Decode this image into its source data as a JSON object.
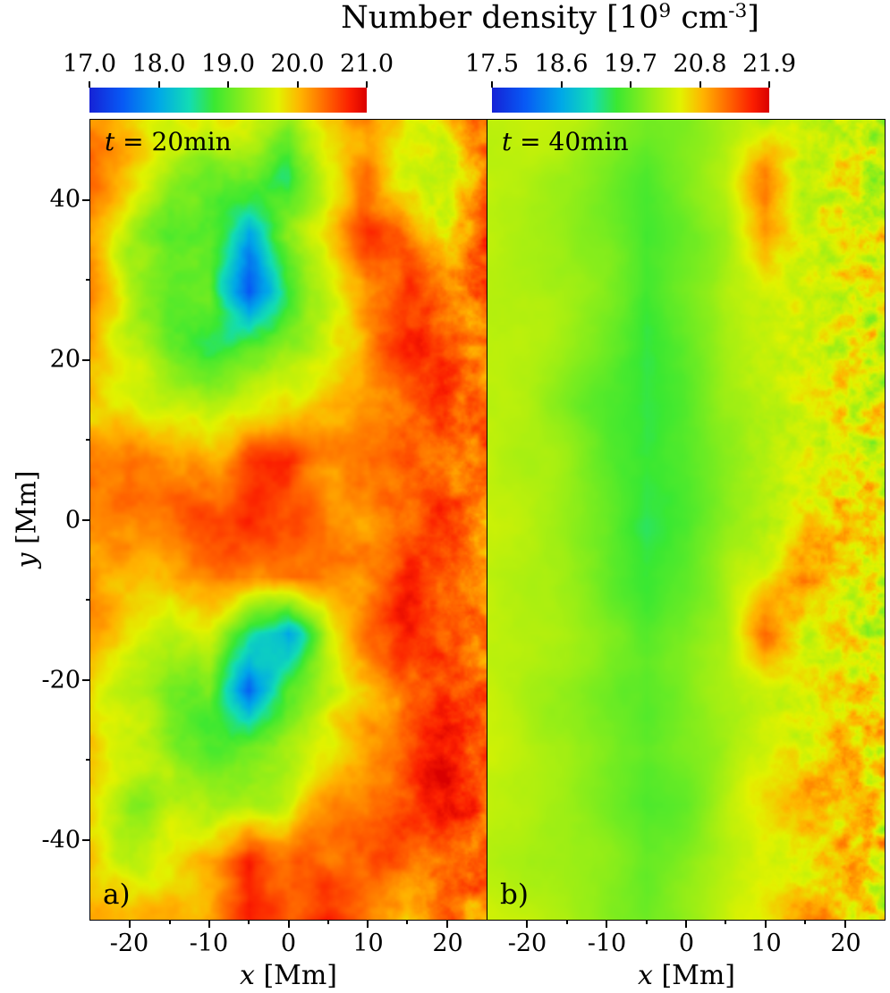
{
  "chart_data": {
    "type": "heatmap",
    "title": "Number density [10^9 cm^-3]",
    "title_parts": {
      "main": "Number density [10",
      "sup1": "9",
      "mid": " cm",
      "sup2": "-3",
      "end": "]"
    },
    "xlabel": {
      "var": "x",
      "unit": " [Mm]"
    },
    "ylabel": {
      "var": "y",
      "unit": " [Mm]"
    },
    "x_range": [
      -25,
      25
    ],
    "y_range": [
      -50,
      50
    ],
    "x_ticks": [
      "-20",
      "-10",
      "0",
      "10",
      "20"
    ],
    "y_ticks": [
      "40",
      "20",
      "0",
      "-20",
      "-40"
    ],
    "colormap": "rainbow-jet",
    "colormap_stops": [
      [
        0.0,
        "#1522d6"
      ],
      [
        0.12,
        "#075af5"
      ],
      [
        0.25,
        "#00a8e8"
      ],
      [
        0.36,
        "#12dcb4"
      ],
      [
        0.45,
        "#3ae832"
      ],
      [
        0.58,
        "#9cee15"
      ],
      [
        0.68,
        "#e2f200"
      ],
      [
        0.76,
        "#ffb400"
      ],
      [
        0.86,
        "#ff6000"
      ],
      [
        0.94,
        "#fb1e00"
      ],
      [
        1.0,
        "#d90000"
      ]
    ],
    "panels": [
      {
        "label": "a)",
        "annotation": {
          "var": "t",
          "rest": " = 20min"
        },
        "colorbar_ticks": [
          "17.0",
          "18.0",
          "19.0",
          "20.0",
          "21.0"
        ],
        "vmin": 17.0,
        "vmax": 21.0,
        "grid_x": [
          -25,
          -20,
          -15,
          -10,
          -5,
          0,
          5,
          10,
          15,
          20,
          25
        ],
        "grid_y": [
          50,
          42.9,
          35.7,
          28.6,
          21.4,
          14.3,
          7.1,
          0,
          -7.1,
          -14.3,
          -21.4,
          -28.6,
          -35.7,
          -42.9,
          -50
        ],
        "values": [
          [
            20.3,
            20.1,
            19.7,
            19.5,
            19.8,
            19.4,
            20.1,
            20.3,
            19.9,
            20.0,
            20.3
          ],
          [
            20.3,
            19.8,
            19.3,
            19.1,
            19.3,
            18.9,
            19.9,
            20.3,
            19.5,
            19.4,
            20.4
          ],
          [
            20.2,
            19.5,
            19.0,
            18.9,
            17.9,
            19.1,
            19.8,
            20.4,
            20.2,
            19.6,
            20.5
          ],
          [
            20.3,
            19.3,
            18.9,
            19.0,
            17.4,
            18.8,
            19.6,
            20.3,
            20.5,
            20.2,
            20.6
          ],
          [
            20.2,
            19.6,
            19.1,
            18.9,
            19.0,
            19.2,
            19.5,
            20.2,
            20.6,
            20.4,
            20.3
          ],
          [
            20.1,
            20.0,
            19.6,
            19.3,
            19.5,
            19.8,
            20.2,
            20.4,
            20.3,
            20.6,
            20.4
          ],
          [
            20.2,
            20.3,
            20.1,
            20.0,
            20.5,
            20.7,
            20.3,
            20.2,
            20.5,
            20.3,
            20.5
          ],
          [
            20.3,
            20.2,
            20.3,
            20.4,
            20.6,
            20.4,
            20.2,
            20.3,
            20.4,
            20.7,
            20.3
          ],
          [
            20.2,
            20.1,
            20.0,
            20.2,
            20.4,
            20.3,
            20.1,
            20.4,
            20.8,
            20.5,
            20.4
          ],
          [
            20.1,
            19.7,
            19.4,
            19.5,
            18.5,
            18.0,
            19.6,
            20.3,
            20.7,
            20.4,
            20.3
          ],
          [
            20.0,
            19.4,
            19.0,
            19.2,
            17.5,
            18.8,
            19.4,
            20.2,
            20.5,
            20.6,
            20.4
          ],
          [
            19.9,
            19.5,
            19.2,
            18.9,
            19.0,
            19.3,
            19.7,
            20.3,
            20.4,
            20.8,
            20.5
          ],
          [
            19.8,
            19.4,
            19.6,
            19.3,
            19.5,
            19.6,
            20.1,
            20.4,
            20.6,
            20.9,
            20.4
          ],
          [
            20.0,
            19.6,
            19.9,
            20.2,
            20.8,
            20.4,
            20.2,
            20.3,
            20.5,
            20.4,
            20.6
          ],
          [
            20.2,
            20.0,
            20.1,
            20.3,
            20.9,
            20.5,
            20.8,
            20.2,
            19.8,
            20.6,
            20.3
          ]
        ],
        "texture": {
          "noise_amp": 0.42,
          "noise_scale": 7,
          "right_mottle": 0.45
        }
      },
      {
        "label": "b)",
        "annotation": {
          "var": "t",
          "rest": " = 40min"
        },
        "colorbar_ticks": [
          "17.5",
          "18.6",
          "19.7",
          "20.8",
          "21.9"
        ],
        "vmin": 17.5,
        "vmax": 21.9,
        "grid_x": [
          -25,
          -20,
          -15,
          -10,
          -5,
          0,
          5,
          10,
          15,
          20,
          25
        ],
        "grid_y": [
          50,
          42.9,
          35.7,
          28.6,
          21.4,
          14.3,
          7.1,
          0,
          -7.1,
          -14.3,
          -21.4,
          -28.6,
          -35.7,
          -42.9,
          -50
        ],
        "values": [
          [
            20.3,
            20.3,
            20.2,
            20.0,
            19.8,
            19.9,
            20.2,
            20.3,
            20.3,
            20.3,
            20.4
          ],
          [
            20.3,
            20.2,
            20.1,
            19.9,
            19.6,
            19.9,
            20.2,
            21.2,
            20.2,
            20.4,
            20.3
          ],
          [
            20.3,
            20.2,
            20.0,
            19.8,
            19.5,
            19.8,
            20.1,
            21.0,
            20.3,
            20.5,
            20.4
          ],
          [
            20.3,
            20.2,
            20.1,
            19.9,
            19.6,
            19.9,
            20.2,
            20.3,
            20.4,
            20.5,
            20.3
          ],
          [
            20.3,
            20.2,
            20.0,
            19.8,
            19.5,
            19.8,
            20.1,
            20.3,
            20.5,
            20.4,
            20.5
          ],
          [
            20.3,
            20.2,
            19.9,
            19.6,
            19.4,
            19.7,
            20.1,
            20.2,
            20.4,
            20.6,
            20.4
          ],
          [
            20.3,
            20.1,
            20.0,
            19.7,
            19.5,
            19.7,
            20.0,
            20.3,
            20.5,
            20.5,
            20.5
          ],
          [
            20.3,
            20.2,
            20.0,
            19.8,
            19.4,
            19.6,
            20.0,
            20.2,
            20.6,
            20.7,
            20.4
          ],
          [
            20.3,
            20.1,
            20.0,
            19.8,
            19.5,
            19.7,
            20.1,
            20.4,
            21.1,
            20.5,
            20.5
          ],
          [
            20.3,
            20.2,
            20.1,
            19.9,
            19.6,
            19.8,
            20.1,
            21.3,
            20.4,
            20.6,
            20.3
          ],
          [
            20.3,
            20.1,
            20.0,
            19.8,
            19.6,
            19.9,
            20.2,
            20.3,
            20.6,
            20.5,
            20.6
          ],
          [
            20.3,
            20.2,
            20.1,
            19.9,
            19.7,
            19.9,
            20.1,
            20.4,
            20.5,
            20.9,
            20.4
          ],
          [
            20.3,
            20.2,
            20.0,
            19.8,
            19.6,
            19.8,
            20.2,
            20.5,
            20.9,
            20.6,
            20.6
          ],
          [
            20.3,
            20.1,
            20.0,
            19.9,
            19.7,
            20.0,
            20.3,
            20.5,
            20.4,
            21.0,
            20.5
          ],
          [
            20.3,
            20.2,
            20.1,
            20.0,
            19.8,
            20.1,
            20.3,
            20.5,
            20.9,
            20.7,
            20.6
          ]
        ],
        "texture": {
          "noise_amp": 0.16,
          "noise_scale": 6,
          "right_mottle": 1.0
        }
      }
    ]
  }
}
